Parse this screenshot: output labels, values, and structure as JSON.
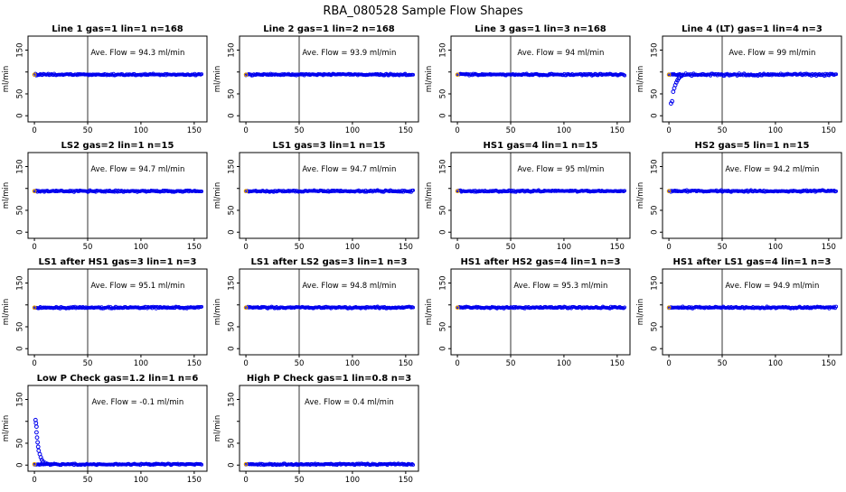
{
  "title": "RBA_080528  Sample Flow Shapes",
  "chart_data": {
    "type": "scatter",
    "title": "RBA_080528  Sample Flow Shapes",
    "layout": {
      "rows": 4,
      "cols": 4,
      "grid": false,
      "legend": "none",
      "point_style": "open-circle"
    },
    "colors": {
      "points": "#0000ee",
      "first_point": "#e09b00",
      "axis": "#000000",
      "vline": "#000000"
    },
    "axes": {
      "xlim": [
        -6,
        162
      ],
      "ylim": [
        -14,
        182
      ],
      "x_ticks": [
        0,
        50,
        100,
        150
      ],
      "x_tick_labels": [
        "0",
        "50",
        "100",
        "150"
      ],
      "y_ticks": [
        0,
        50,
        100,
        150
      ],
      "y_tick_labels": [
        "0",
        "50",
        "",
        "150"
      ],
      "ylabel": "ml/min",
      "xlabel": "",
      "vline_x": 50
    },
    "panels": [
      {
        "title": "Line 1 gas=1 lin=1 n=168",
        "ave_flow": 94.3,
        "ave_flow_label": "Ave. Flow =  94.3  ml/min",
        "band": {
          "x_start": 0,
          "x_end": 157,
          "y_mean": 94,
          "jitter": 2.5
        },
        "lead_points": []
      },
      {
        "title": "Line 2 gas=1 lin=2 n=168",
        "ave_flow": 93.9,
        "ave_flow_label": "Ave. Flow =  93.9  ml/min",
        "band": {
          "x_start": 0,
          "x_end": 157,
          "y_mean": 94,
          "jitter": 2.5
        },
        "lead_points": []
      },
      {
        "title": "Line 3 gas=1 lin=3 n=168",
        "ave_flow": 94,
        "ave_flow_label": "Ave. Flow =  94  ml/min",
        "band": {
          "x_start": 0,
          "x_end": 157,
          "y_mean": 94,
          "jitter": 2.5
        },
        "lead_points": []
      },
      {
        "title": "Line 4 (LT) gas=1 lin=4 n=3",
        "ave_flow": 99,
        "ave_flow_label": "Ave. Flow =  99  ml/min",
        "band": {
          "x_start": 0,
          "x_end": 157,
          "y_mean": 94,
          "jitter": 3.2
        },
        "lead_points": [
          [
            2,
            28
          ],
          [
            3,
            33
          ],
          [
            4,
            55
          ],
          [
            5,
            63
          ],
          [
            6,
            70
          ],
          [
            7,
            76
          ],
          [
            8,
            81
          ],
          [
            9,
            85
          ],
          [
            10,
            88
          ],
          [
            12,
            91
          ]
        ]
      },
      {
        "title": "LS2 gas=2 lin=1 n=15",
        "ave_flow": 94.7,
        "ave_flow_label": "Ave. Flow =  94.7  ml/min",
        "band": {
          "x_start": 0,
          "x_end": 157,
          "y_mean": 94,
          "jitter": 2.5
        },
        "lead_points": []
      },
      {
        "title": "LS1 gas=3 lin=1 n=15",
        "ave_flow": 94.7,
        "ave_flow_label": "Ave. Flow =  94.7  ml/min",
        "band": {
          "x_start": 0,
          "x_end": 157,
          "y_mean": 94,
          "jitter": 2.5
        },
        "lead_points": []
      },
      {
        "title": "HS1 gas=4 lin=1 n=15",
        "ave_flow": 95,
        "ave_flow_label": "Ave. Flow =  95  ml/min",
        "band": {
          "x_start": 0,
          "x_end": 157,
          "y_mean": 94,
          "jitter": 2.5
        },
        "lead_points": []
      },
      {
        "title": "HS2 gas=5 lin=1 n=15",
        "ave_flow": 94.2,
        "ave_flow_label": "Ave. Flow =  94.2  ml/min",
        "band": {
          "x_start": 0,
          "x_end": 157,
          "y_mean": 94,
          "jitter": 2.5
        },
        "lead_points": []
      },
      {
        "title": "LS1 after HS1 gas=3 lin=1 n=3",
        "ave_flow": 95.1,
        "ave_flow_label": "Ave. Flow =  95.1  ml/min",
        "band": {
          "x_start": 0,
          "x_end": 157,
          "y_mean": 94,
          "jitter": 2.5
        },
        "lead_points": []
      },
      {
        "title": "LS1 after LS2 gas=3 lin=1 n=3",
        "ave_flow": 94.8,
        "ave_flow_label": "Ave. Flow =  94.8  ml/min",
        "band": {
          "x_start": 0,
          "x_end": 157,
          "y_mean": 94,
          "jitter": 2.5
        },
        "lead_points": []
      },
      {
        "title": "HS1 after HS2 gas=4 lin=1 n=3",
        "ave_flow": 95.3,
        "ave_flow_label": "Ave. Flow =  95.3  ml/min",
        "band": {
          "x_start": 0,
          "x_end": 157,
          "y_mean": 94,
          "jitter": 2.5
        },
        "lead_points": []
      },
      {
        "title": "HS1 after LS1 gas=4 lin=1 n=3",
        "ave_flow": 94.9,
        "ave_flow_label": "Ave. Flow =  94.9  ml/min",
        "band": {
          "x_start": 0,
          "x_end": 157,
          "y_mean": 94,
          "jitter": 2.5
        },
        "lead_points": []
      },
      {
        "title": "Low P Check gas=1.2 lin=1 n=6",
        "ave_flow": -0.1,
        "ave_flow_label": "Ave. Flow =  -0.1  ml/min",
        "band": {
          "x_start": 0,
          "x_end": 157,
          "y_mean": 2,
          "jitter": 2.2
        },
        "lead_points": [
          [
            1,
            103
          ],
          [
            1.5,
            96
          ],
          [
            2,
            88
          ],
          [
            2,
            75
          ],
          [
            2.5,
            63
          ],
          [
            3,
            52
          ],
          [
            3.5,
            42
          ],
          [
            4,
            33
          ],
          [
            5,
            25
          ],
          [
            6,
            18
          ],
          [
            7,
            12
          ],
          [
            8,
            8
          ],
          [
            10,
            5
          ],
          [
            12,
            3
          ]
        ]
      },
      {
        "title": "High P Check gas=1 lin=0.8 n=3",
        "ave_flow": 0.4,
        "ave_flow_label": "Ave. Flow =  0.4  ml/min",
        "band": {
          "x_start": 0,
          "x_end": 157,
          "y_mean": 2,
          "jitter": 2.2
        },
        "lead_points": []
      }
    ]
  }
}
